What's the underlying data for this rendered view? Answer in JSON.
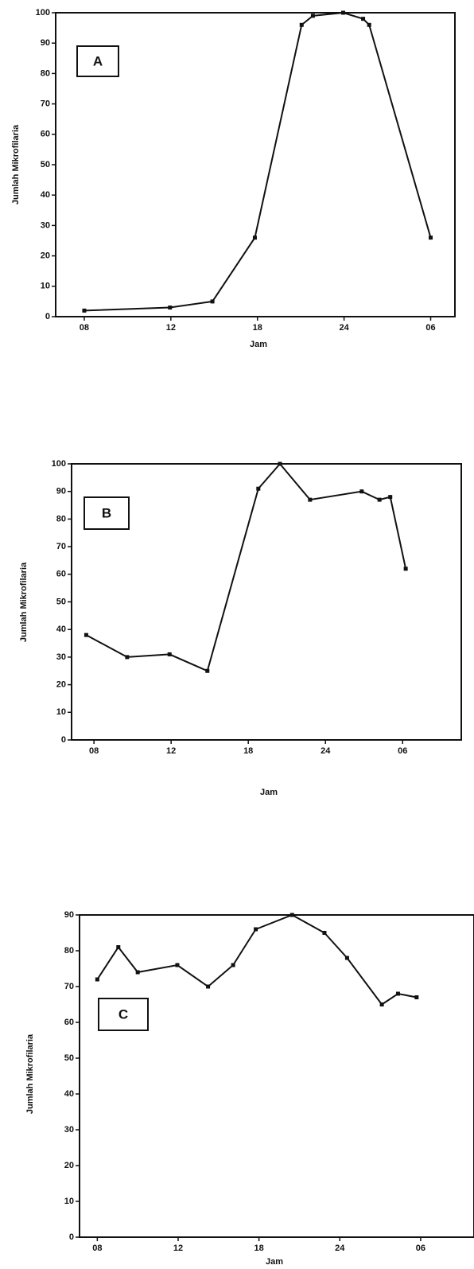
{
  "chart_data": [
    {
      "type": "line",
      "panel": "A",
      "x_label": "Jam",
      "y_label": "Jumlah Mikrofilaria",
      "xlim": [
        -0.33,
        4.28
      ],
      "ylim": [
        0,
        100
      ],
      "xticks": [
        {
          "value": 0,
          "label": "08"
        },
        {
          "value": 1,
          "label": "12"
        },
        {
          "value": 2,
          "label": "18"
        },
        {
          "value": 3,
          "label": "24"
        },
        {
          "value": 4,
          "label": "06"
        }
      ],
      "yticks": [
        0,
        10,
        20,
        30,
        40,
        50,
        60,
        70,
        80,
        90,
        100
      ],
      "series": [
        {
          "color": "#111111",
          "x": [
            0,
            0.99,
            1.48,
            1.97,
            2.51,
            2.64,
            2.99,
            3.22,
            3.29,
            4.0
          ],
          "values": [
            2,
            3,
            5,
            26,
            96,
            99,
            100,
            98,
            96,
            26
          ]
        }
      ]
    },
    {
      "type": "line",
      "panel": "B",
      "x_label": "Jam",
      "y_label": "Jumlah Mikrofilaria",
      "xlim": [
        -0.29,
        4.76
      ],
      "ylim": [
        0,
        100
      ],
      "xticks": [
        {
          "value": 0,
          "label": "08"
        },
        {
          "value": 1,
          "label": "12"
        },
        {
          "value": 2,
          "label": "18"
        },
        {
          "value": 3,
          "label": "24"
        },
        {
          "value": 4,
          "label": "06"
        }
      ],
      "yticks": [
        0,
        10,
        20,
        30,
        40,
        50,
        60,
        70,
        80,
        90,
        100
      ],
      "series": [
        {
          "color": "#111111",
          "x": [
            -0.1,
            0.43,
            0.98,
            1.47,
            2.13,
            2.41,
            2.8,
            3.47,
            3.7,
            3.84,
            4.04
          ],
          "values": [
            38,
            30,
            31,
            25,
            91,
            100,
            87,
            90,
            87,
            88,
            62
          ]
        }
      ]
    },
    {
      "type": "line",
      "panel": "C",
      "x_label": "Jam",
      "y_label": "Jumlah Mikrofilaria",
      "xlim": [
        -0.22,
        4.66
      ],
      "ylim": [
        0,
        90
      ],
      "xticks": [
        {
          "value": 0,
          "label": "08"
        },
        {
          "value": 1,
          "label": "12"
        },
        {
          "value": 2,
          "label": "18"
        },
        {
          "value": 3,
          "label": "24"
        },
        {
          "value": 4,
          "label": "06"
        }
      ],
      "yticks": [
        0,
        10,
        20,
        30,
        40,
        50,
        60,
        70,
        80,
        90
      ],
      "series": [
        {
          "color": "#111111",
          "x": [
            0,
            0.26,
            0.5,
            0.99,
            1.37,
            1.68,
            1.96,
            2.41,
            2.81,
            3.09,
            3.52,
            3.72,
            3.95
          ],
          "values": [
            72,
            81,
            74,
            76,
            70,
            76,
            86,
            90,
            85,
            78,
            65,
            68,
            67
          ]
        }
      ]
    }
  ]
}
